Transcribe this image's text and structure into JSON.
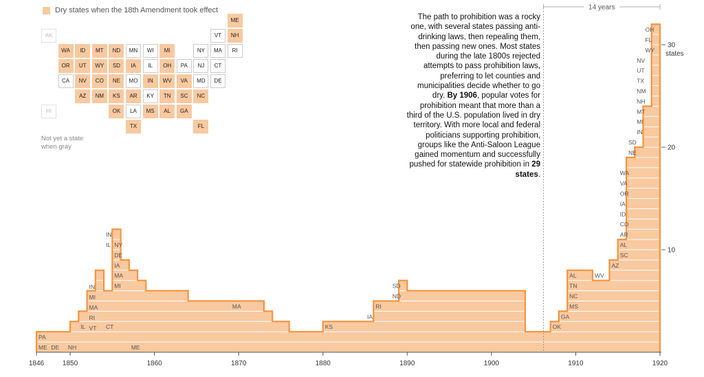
{
  "legend": {
    "label": "Dry states when the 18th Amendment took effect",
    "color": "#f9c9a0"
  },
  "tilemap_note": "Not yet a state when gray",
  "tiles": [
    {
      "s": "ME",
      "r": 0,
      "c": 11,
      "st": "dry"
    },
    {
      "s": "AK",
      "r": 1,
      "c": 0,
      "st": "na"
    },
    {
      "s": "VT",
      "r": 1,
      "c": 10,
      "st": "wet"
    },
    {
      "s": "NH",
      "r": 1,
      "c": 11,
      "st": "dry"
    },
    {
      "s": "WA",
      "r": 2,
      "c": 1,
      "st": "dry"
    },
    {
      "s": "ID",
      "r": 2,
      "c": 2,
      "st": "dry"
    },
    {
      "s": "MT",
      "r": 2,
      "c": 3,
      "st": "dry"
    },
    {
      "s": "ND",
      "r": 2,
      "c": 4,
      "st": "dry"
    },
    {
      "s": "MN",
      "r": 2,
      "c": 5,
      "st": "wet"
    },
    {
      "s": "WI",
      "r": 2,
      "c": 6,
      "st": "wet"
    },
    {
      "s": "MI",
      "r": 2,
      "c": 7,
      "st": "dry"
    },
    {
      "s": "NY",
      "r": 2,
      "c": 9,
      "st": "wet"
    },
    {
      "s": "MA",
      "r": 2,
      "c": 10,
      "st": "wet"
    },
    {
      "s": "RI",
      "r": 2,
      "c": 11,
      "st": "wet"
    },
    {
      "s": "OR",
      "r": 3,
      "c": 1,
      "st": "dry"
    },
    {
      "s": "UT",
      "r": 3,
      "c": 2,
      "st": "dry"
    },
    {
      "s": "WY",
      "r": 3,
      "c": 3,
      "st": "dry"
    },
    {
      "s": "SD",
      "r": 3,
      "c": 4,
      "st": "dry"
    },
    {
      "s": "IA",
      "r": 3,
      "c": 5,
      "st": "dry"
    },
    {
      "s": "IL",
      "r": 3,
      "c": 6,
      "st": "wet"
    },
    {
      "s": "OH",
      "r": 3,
      "c": 7,
      "st": "dry"
    },
    {
      "s": "PA",
      "r": 3,
      "c": 8,
      "st": "wet"
    },
    {
      "s": "NJ",
      "r": 3,
      "c": 9,
      "st": "wet"
    },
    {
      "s": "CT",
      "r": 3,
      "c": 10,
      "st": "wet"
    },
    {
      "s": "CA",
      "r": 4,
      "c": 1,
      "st": "wet"
    },
    {
      "s": "NV",
      "r": 4,
      "c": 2,
      "st": "dry"
    },
    {
      "s": "CO",
      "r": 4,
      "c": 3,
      "st": "dry"
    },
    {
      "s": "NE",
      "r": 4,
      "c": 4,
      "st": "dry"
    },
    {
      "s": "MO",
      "r": 4,
      "c": 5,
      "st": "wet"
    },
    {
      "s": "IN",
      "r": 4,
      "c": 6,
      "st": "dry"
    },
    {
      "s": "WV",
      "r": 4,
      "c": 7,
      "st": "dry"
    },
    {
      "s": "VA",
      "r": 4,
      "c": 8,
      "st": "dry"
    },
    {
      "s": "MD",
      "r": 4,
      "c": 9,
      "st": "wet"
    },
    {
      "s": "DE",
      "r": 4,
      "c": 10,
      "st": "wet"
    },
    {
      "s": "AZ",
      "r": 5,
      "c": 2,
      "st": "dry"
    },
    {
      "s": "NM",
      "r": 5,
      "c": 3,
      "st": "dry"
    },
    {
      "s": "KS",
      "r": 5,
      "c": 4,
      "st": "dry"
    },
    {
      "s": "AR",
      "r": 5,
      "c": 5,
      "st": "dry"
    },
    {
      "s": "KY",
      "r": 5,
      "c": 6,
      "st": "wet"
    },
    {
      "s": "TN",
      "r": 5,
      "c": 7,
      "st": "dry"
    },
    {
      "s": "SC",
      "r": 5,
      "c": 8,
      "st": "dry"
    },
    {
      "s": "NC",
      "r": 5,
      "c": 9,
      "st": "dry"
    },
    {
      "s": "HI",
      "r": 6,
      "c": 0,
      "st": "na"
    },
    {
      "s": "OK",
      "r": 6,
      "c": 4,
      "st": "dry"
    },
    {
      "s": "LA",
      "r": 6,
      "c": 5,
      "st": "wet"
    },
    {
      "s": "MS",
      "r": 6,
      "c": 6,
      "st": "dry"
    },
    {
      "s": "AL",
      "r": 6,
      "c": 7,
      "st": "dry"
    },
    {
      "s": "GA",
      "r": 6,
      "c": 8,
      "st": "dry"
    },
    {
      "s": "TX",
      "r": 7,
      "c": 5,
      "st": "dry"
    },
    {
      "s": "FL",
      "r": 7,
      "c": 9,
      "st": "dry"
    }
  ],
  "annotation": {
    "p1": "The path to prohibition was a rocky one, with several states passing anti-drinking laws, then repealing them, then passing new ones. Most states during the late 1800s rejected attempts to pass prohibition laws, preferring to let counties and municipalities decide whether to go dry.",
    "b1": "By 1906",
    "p2": ", popular votes for prohibition meant that more than a third of the U.S. population lived in dry territory. With more local and federal politicians supporting prohibition, groups like the Anti-Saloon League gained momentum and successfully pushed for statewide prohibition in",
    "b2": "29 states",
    "p3": "."
  },
  "chart_data": {
    "type": "area",
    "x_ticks": [
      1846,
      1850,
      1860,
      1870,
      1880,
      1890,
      1900,
      1910,
      1920
    ],
    "xlim": [
      1846,
      1920
    ],
    "y_ticks": [
      10,
      20,
      30
    ],
    "y_tick_labels": [
      "10",
      "20",
      "30"
    ],
    "y_unit_label": "states",
    "ylim": [
      0,
      33
    ],
    "bracket_label": "14 years",
    "bracket_range": [
      1906,
      1920
    ],
    "color": "#f9c9a0",
    "line_color": "#f7943e",
    "count_series": {
      "x": [
        1846,
        1850,
        1851,
        1852,
        1853,
        1854,
        1855,
        1856,
        1857,
        1858,
        1859,
        1864,
        1873,
        1874,
        1876,
        1880,
        1885,
        1886,
        1889,
        1890,
        1904,
        1907,
        1908,
        1909,
        1912,
        1914,
        1915,
        1916,
        1917,
        1918,
        1919,
        1920
      ],
      "y": [
        2,
        3,
        4,
        6,
        8,
        6,
        12,
        9,
        8,
        7,
        6,
        5,
        4,
        3,
        2,
        3,
        3,
        5,
        7,
        6,
        2,
        3,
        4,
        8,
        7,
        9,
        11,
        19,
        20,
        24,
        32,
        32
      ]
    },
    "state_labels": [
      {
        "s": "ME",
        "x": 1846
      },
      {
        "s": "PA",
        "x": 1846
      },
      {
        "s": "DE",
        "x": 1847.5
      },
      {
        "s": "NH",
        "x": 1849.5
      },
      {
        "s": "ME",
        "x": 1857
      },
      {
        "s": "IL",
        "x": 1851
      },
      {
        "s": "CT",
        "x": 1854
      },
      {
        "s": "VT",
        "x": 1852
      },
      {
        "s": "RI",
        "x": 1852
      },
      {
        "s": "MA",
        "x": 1852
      },
      {
        "s": "MI",
        "x": 1852
      },
      {
        "s": "IN",
        "x": 1852
      },
      {
        "s": "MI",
        "x": 1855
      },
      {
        "s": "MA",
        "x": 1855
      },
      {
        "s": "IA",
        "x": 1855
      },
      {
        "s": "DE",
        "x": 1855
      },
      {
        "s": "NY",
        "x": 1855
      },
      {
        "s": "IL",
        "x": 1854
      },
      {
        "s": "IN",
        "x": 1854
      },
      {
        "s": "MA",
        "x": 1869
      },
      {
        "s": "KS",
        "x": 1880
      },
      {
        "s": "IA",
        "x": 1885
      },
      {
        "s": "RI",
        "x": 1886
      },
      {
        "s": "ND",
        "x": 1888
      },
      {
        "s": "SD",
        "x": 1888
      },
      {
        "s": "OK",
        "x": 1907
      },
      {
        "s": "GA",
        "x": 1908
      },
      {
        "s": "MS",
        "x": 1909
      },
      {
        "s": "NC",
        "x": 1909
      },
      {
        "s": "TN",
        "x": 1909
      },
      {
        "s": "AL",
        "x": 1909
      },
      {
        "s": "WV",
        "x": 1912
      },
      {
        "s": "AZ",
        "x": 1914
      },
      {
        "s": "SC",
        "x": 1915
      },
      {
        "s": "AL",
        "x": 1915
      },
      {
        "s": "AR",
        "x": 1915
      },
      {
        "s": "CO",
        "x": 1915
      },
      {
        "s": "ID",
        "x": 1915
      },
      {
        "s": "IA",
        "x": 1915
      },
      {
        "s": "OR",
        "x": 1915
      },
      {
        "s": "VA",
        "x": 1915
      },
      {
        "s": "WA",
        "x": 1915
      },
      {
        "s": "NE",
        "x": 1916
      },
      {
        "s": "SD",
        "x": 1916
      },
      {
        "s": "IN",
        "x": 1917
      },
      {
        "s": "MI",
        "x": 1917
      },
      {
        "s": "MT",
        "x": 1917
      },
      {
        "s": "NH",
        "x": 1917
      },
      {
        "s": "NM",
        "x": 1917
      },
      {
        "s": "TX",
        "x": 1917
      },
      {
        "s": "UT",
        "x": 1917
      },
      {
        "s": "NV",
        "x": 1917
      },
      {
        "s": "WY",
        "x": 1918
      },
      {
        "s": "FL",
        "x": 1918
      },
      {
        "s": "OH",
        "x": 1918
      }
    ]
  }
}
